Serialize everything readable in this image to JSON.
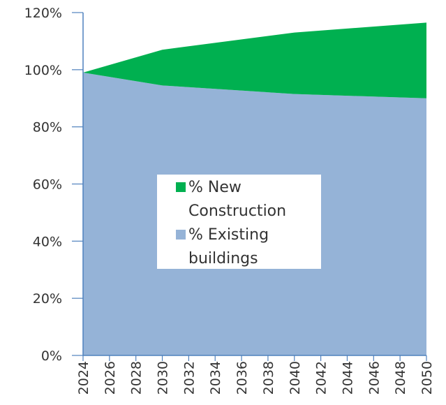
{
  "chart_data": {
    "type": "stacked_area",
    "x": [
      2024,
      2030,
      2040,
      2050
    ],
    "series": [
      {
        "name": "% Existing buildings",
        "color": "#95b3d7",
        "values": [
          99,
          94.5,
          91.5,
          90
        ]
      },
      {
        "name": "% New Construction",
        "color": "#00b050",
        "values": [
          0,
          12.5,
          21.5,
          26.5
        ]
      }
    ],
    "xlim": [
      2024,
      2050
    ],
    "xticks": [
      2024,
      2026,
      2028,
      2030,
      2032,
      2034,
      2036,
      2038,
      2040,
      2042,
      2044,
      2046,
      2048,
      2050
    ],
    "ylim": [
      0,
      120
    ],
    "yticks": [
      {
        "value": 0,
        "label": "0%"
      },
      {
        "value": 20,
        "label": "20%"
      },
      {
        "value": 40,
        "label": "40%"
      },
      {
        "value": 60,
        "label": "60%"
      },
      {
        "value": 80,
        "label": "80%"
      },
      {
        "value": 100,
        "label": "100%"
      },
      {
        "value": 120,
        "label": "120%"
      }
    ],
    "legend": "center"
  }
}
